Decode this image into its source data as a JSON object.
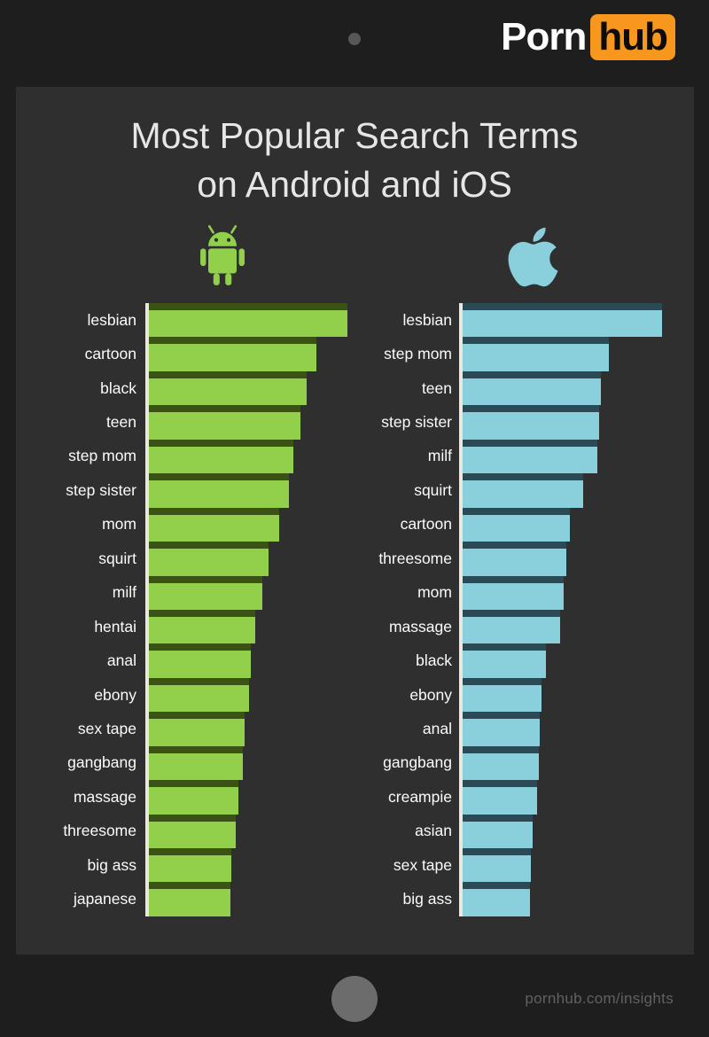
{
  "brand": {
    "word1": "Porn",
    "word2": "hub",
    "accent_color": "#f7971d"
  },
  "title": {
    "line1": "Most Popular Search Terms",
    "line2": "on Android and iOS"
  },
  "chart_data": {
    "type": "bar",
    "orientation": "horizontal",
    "value_units": "relative search popularity (bar length in px; no numeric axis shown)",
    "axis_line_color": "#e9e7df",
    "legend_position": "icons above each column",
    "series": [
      {
        "name": "Android",
        "icon": "android-robot-icon",
        "bar_color": "#92d04c",
        "bar_edge_color": "#3a5214",
        "categories": [
          "lesbian",
          "cartoon",
          "black",
          "teen",
          "step mom",
          "step sister",
          "mom",
          "squirt",
          "milf",
          "hentai",
          "anal",
          "ebony",
          "sex tape",
          "gangbang",
          "massage",
          "threesome",
          "big ass",
          "japanese"
        ],
        "values": [
          224,
          189,
          178,
          171,
          163,
          158,
          147,
          135,
          128,
          120,
          115,
          113,
          108,
          106,
          101,
          98,
          93,
          92
        ]
      },
      {
        "name": "iOS",
        "icon": "apple-icon",
        "bar_color": "#89cfdc",
        "bar_edge_color": "#2b4a55",
        "categories": [
          "lesbian",
          "step mom",
          "teen",
          "step sister",
          "milf",
          "squirt",
          "cartoon",
          "threesome",
          "mom",
          "massage",
          "black",
          "ebony",
          "anal",
          "gangbang",
          "creampie",
          "asian",
          "sex tape",
          "big ass"
        ],
        "values": [
          225,
          165,
          156,
          154,
          152,
          136,
          121,
          117,
          114,
          110,
          94,
          89,
          87,
          86,
          84,
          79,
          77,
          76
        ]
      }
    ]
  },
  "footer": {
    "url": "pornhub.com/insights"
  }
}
